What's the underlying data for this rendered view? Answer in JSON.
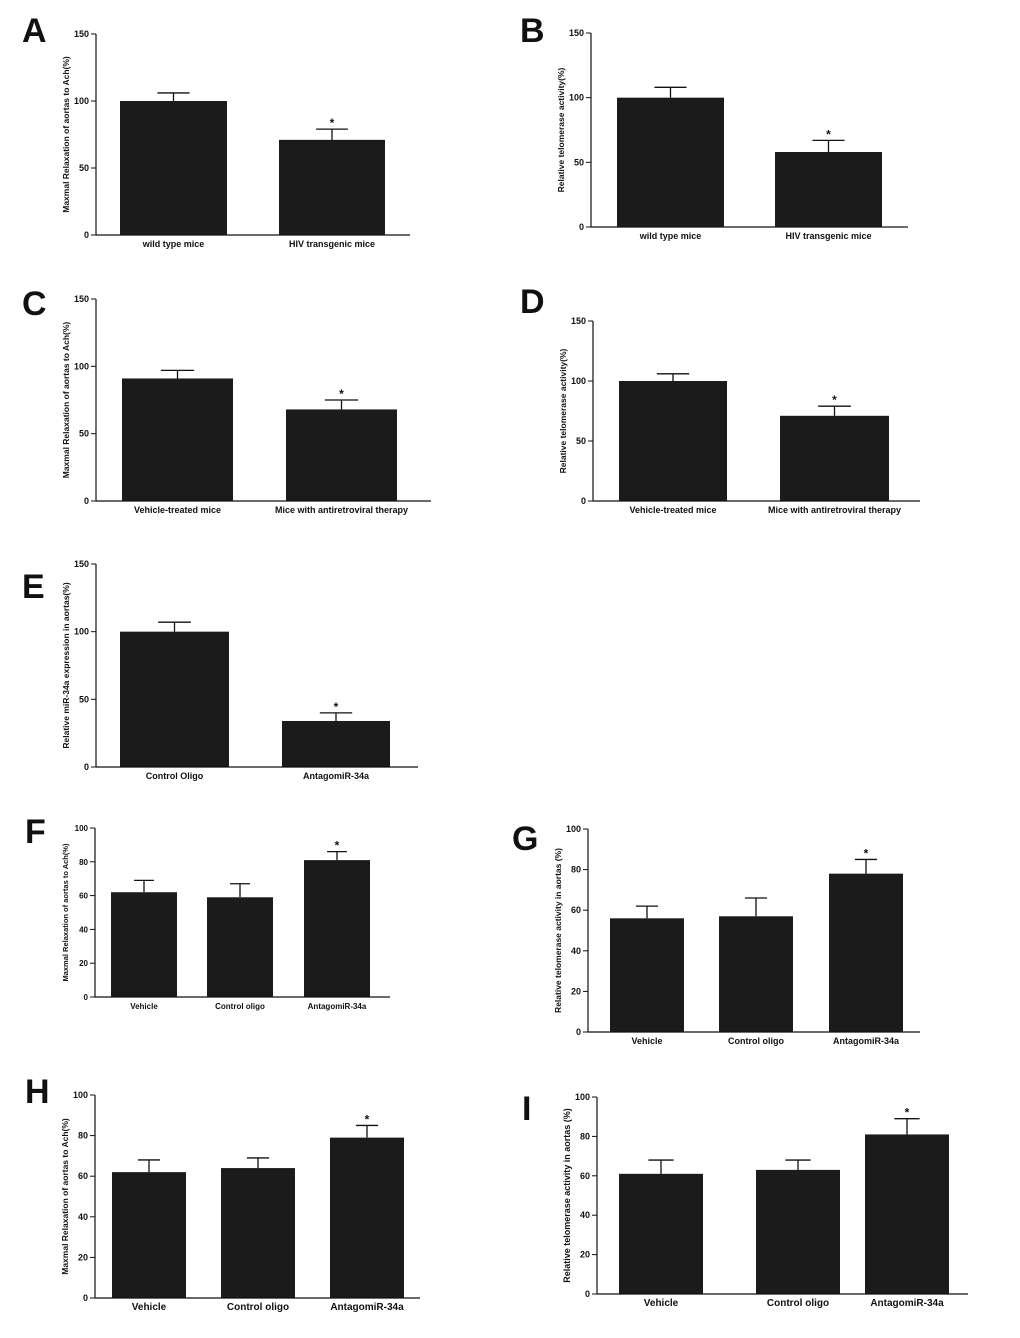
{
  "colors": {
    "bar": "#1b1b1b",
    "axis": "#111111",
    "background": "#ffffff"
  },
  "chart_data": [
    {
      "panel": "A",
      "type": "bar",
      "ylabel": "Maxmal Relaxation of aortas to Ach(%)",
      "ylim": [
        0,
        150
      ],
      "yticks": [
        0,
        50,
        100,
        150
      ],
      "categories": [
        "wild type mice",
        "HIV transgenic mice"
      ],
      "values": [
        100,
        71
      ],
      "errors": [
        6,
        8
      ],
      "significance": [
        "",
        "*"
      ]
    },
    {
      "panel": "B",
      "type": "bar",
      "ylabel": "Relative telomerase activity(%)",
      "ylim": [
        0,
        150
      ],
      "yticks": [
        0,
        50,
        100,
        150
      ],
      "categories": [
        "wild type mice",
        "HIV transgenic mice"
      ],
      "values": [
        100,
        58
      ],
      "errors": [
        8,
        9
      ],
      "significance": [
        "",
        "*"
      ]
    },
    {
      "panel": "C",
      "type": "bar",
      "ylabel": "Maxmal Relaxation of aortas to Ach(%)",
      "ylim": [
        0,
        150
      ],
      "yticks": [
        0,
        50,
        100,
        150
      ],
      "categories": [
        "Vehicle-treated mice",
        "Mice with antiretroviral therapy"
      ],
      "values": [
        91,
        68
      ],
      "errors": [
        6,
        7
      ],
      "significance": [
        "",
        "*"
      ]
    },
    {
      "panel": "D",
      "type": "bar",
      "ylabel": "Relative telomerase activity(%)",
      "ylim": [
        0,
        150
      ],
      "yticks": [
        0,
        50,
        100,
        150
      ],
      "categories": [
        "Vehicle-treated mice",
        "Mice with antiretroviral therapy"
      ],
      "values": [
        100,
        71
      ],
      "errors": [
        6,
        8
      ],
      "significance": [
        "",
        "*"
      ]
    },
    {
      "panel": "E",
      "type": "bar",
      "ylabel": "Relative miR-34a expression in aortas(%)",
      "ylim": [
        0,
        150
      ],
      "yticks": [
        0,
        50,
        100,
        150
      ],
      "categories": [
        "Control Oligo",
        "AntagomiR-34a"
      ],
      "values": [
        100,
        34
      ],
      "errors": [
        7,
        6
      ],
      "significance": [
        "",
        "*"
      ]
    },
    {
      "panel": "F",
      "type": "bar",
      "ylabel": "Maxmal Relaxation of aortas to Ach(%)",
      "ylim": [
        0,
        100
      ],
      "yticks": [
        0,
        20,
        40,
        60,
        80,
        100
      ],
      "categories": [
        "Vehicle",
        "Control oligo",
        "AntagomiR-34a"
      ],
      "values": [
        62,
        59,
        81
      ],
      "errors": [
        7,
        8,
        5
      ],
      "significance": [
        "",
        "",
        "*"
      ]
    },
    {
      "panel": "G",
      "type": "bar",
      "ylabel": "Relative telomerase activity in aortas (%)",
      "ylim": [
        0,
        100
      ],
      "yticks": [
        0,
        20,
        40,
        60,
        80,
        100
      ],
      "categories": [
        "Vehicle",
        "Control oligo",
        "AntagomiR-34a"
      ],
      "values": [
        56,
        57,
        78
      ],
      "errors": [
        6,
        9,
        7
      ],
      "significance": [
        "",
        "",
        "*"
      ]
    },
    {
      "panel": "H",
      "type": "bar",
      "ylabel": "Maxmal Relaxation of aortas to Ach(%)",
      "ylim": [
        0,
        100
      ],
      "yticks": [
        0,
        20,
        40,
        60,
        80,
        100
      ],
      "categories": [
        "Vehicle",
        "Control oligo",
        "AntagomiR-34a"
      ],
      "values": [
        62,
        64,
        79
      ],
      "errors": [
        6,
        5,
        6
      ],
      "significance": [
        "",
        "",
        "*"
      ]
    },
    {
      "panel": "I",
      "type": "bar",
      "ylabel": "Relative telomerase activity in aortas (%)",
      "ylim": [
        0,
        100
      ],
      "yticks": [
        0,
        20,
        40,
        60,
        80,
        100
      ],
      "categories": [
        "Vehicle",
        "Control oligo",
        "AntagomiR-34a"
      ],
      "values": [
        61,
        63,
        81
      ],
      "errors": [
        7,
        5,
        8
      ],
      "significance": [
        "",
        "",
        "*"
      ]
    }
  ]
}
